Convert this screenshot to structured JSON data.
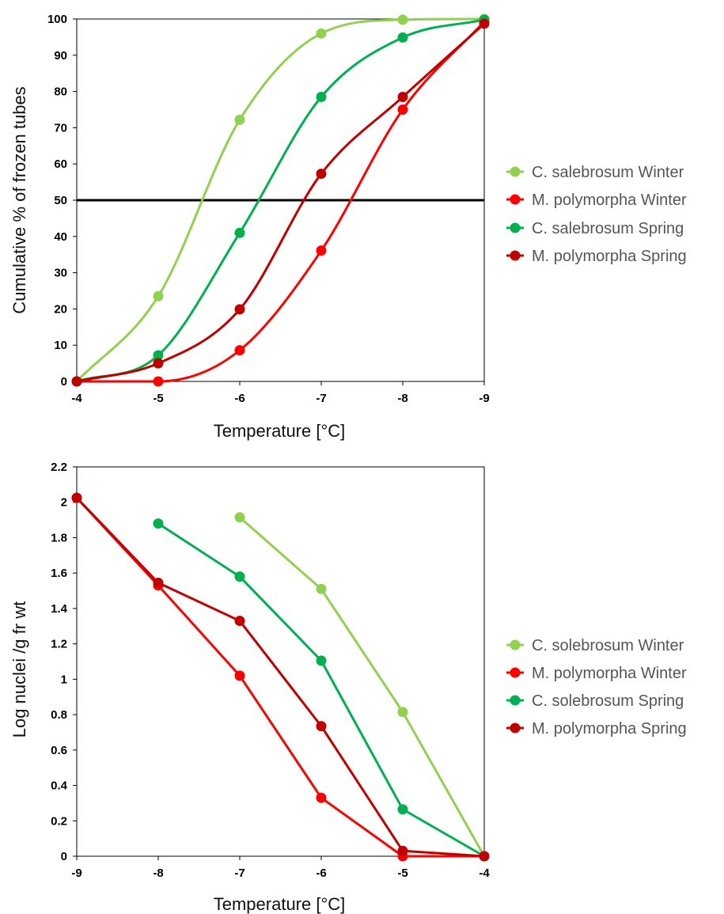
{
  "chart_data": [
    {
      "type": "line",
      "smooth": true,
      "xlabel": "Temperature [°C]",
      "ylabel": "Cumulative % of frozen tubes",
      "x_ticks": [
        "-4",
        "-5",
        "-6",
        "-7",
        "-8",
        "-9"
      ],
      "y_ticks": [
        "0",
        "10",
        "20",
        "30",
        "40",
        "50",
        "60",
        "70",
        "80",
        "90",
        "100"
      ],
      "xlim": [
        -4,
        -9
      ],
      "ylim": [
        0,
        100
      ],
      "grid": false,
      "legend_position": "right",
      "reference_line": {
        "y": 50,
        "color": "#000000"
      },
      "x": [
        -4,
        -5,
        -6,
        -7,
        -8,
        -9
      ],
      "series": [
        {
          "name": "C. salebrosum Winter",
          "color": "#92d050",
          "values": [
            0,
            23.5,
            72.2,
            96.0,
            99.8,
            100
          ]
        },
        {
          "name": "M. polymorpha Winter",
          "color": "#ff0000",
          "values": [
            0,
            0,
            8.6,
            36.1,
            75.0,
            99.3
          ]
        },
        {
          "name": "C. salebrosum Spring",
          "color": "#00b050",
          "values": [
            0,
            7.2,
            41.0,
            78.5,
            94.9,
            99.8
          ]
        },
        {
          "name": "M. polymorpha Spring",
          "color": "#c00000",
          "values": [
            0,
            5.0,
            19.9,
            57.3,
            78.5,
            98.7
          ]
        }
      ]
    },
    {
      "type": "line",
      "smooth": false,
      "xlabel": "Temperature [°C]",
      "ylabel": "Log nuclei /g fr wt",
      "x_ticks": [
        "-9",
        "-8",
        "-7",
        "-6",
        "-5",
        "-4"
      ],
      "y_ticks": [
        "0",
        "0.2",
        "0.4",
        "0.6",
        "0.8",
        "1",
        "1.2",
        "1.4",
        "1.6",
        "1.8",
        "2",
        "2.2"
      ],
      "xlim": [
        -9,
        -4
      ],
      "ylim": [
        0,
        2.2
      ],
      "grid": false,
      "legend_position": "right",
      "series": [
        {
          "name": "C. solebrosum Winter",
          "color": "#92d050",
          "x": [
            -7,
            -6,
            -5,
            -4
          ],
          "values": [
            1.915,
            1.51,
            0.815,
            0.0
          ]
        },
        {
          "name": "M. polymorpha Winter",
          "color": "#ff0000",
          "x": [
            -9,
            -8,
            -7,
            -6,
            -5,
            -4
          ],
          "values": [
            2.025,
            1.53,
            1.02,
            0.33,
            0.0,
            0.0
          ]
        },
        {
          "name": "C. solebrosum Spring",
          "color": "#00b050",
          "x": [
            -8,
            -7,
            -6,
            -5,
            -4
          ],
          "values": [
            1.88,
            1.58,
            1.105,
            0.265,
            0.0
          ]
        },
        {
          "name": "M. polymorpha Spring",
          "color": "#c00000",
          "x": [
            -9,
            -8,
            -7,
            -6,
            -5,
            -4
          ],
          "values": [
            2.025,
            1.545,
            1.33,
            0.735,
            0.03,
            0.0
          ]
        }
      ]
    }
  ]
}
